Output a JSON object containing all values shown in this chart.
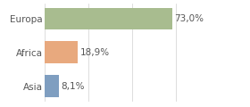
{
  "categories": [
    "Europa",
    "Africa",
    "Asia"
  ],
  "values": [
    73.0,
    18.9,
    8.1
  ],
  "labels": [
    "73,0%",
    "18,9%",
    "8,1%"
  ],
  "bar_colors": [
    "#a8bc8f",
    "#e8a97e",
    "#7f9ec0"
  ],
  "background_color": "#ffffff",
  "xlim": [
    0,
    100
  ],
  "bar_height": 0.65,
  "label_fontsize": 7.5,
  "tick_fontsize": 7.5,
  "grid_color": "#d0d0d0",
  "text_color": "#555555"
}
